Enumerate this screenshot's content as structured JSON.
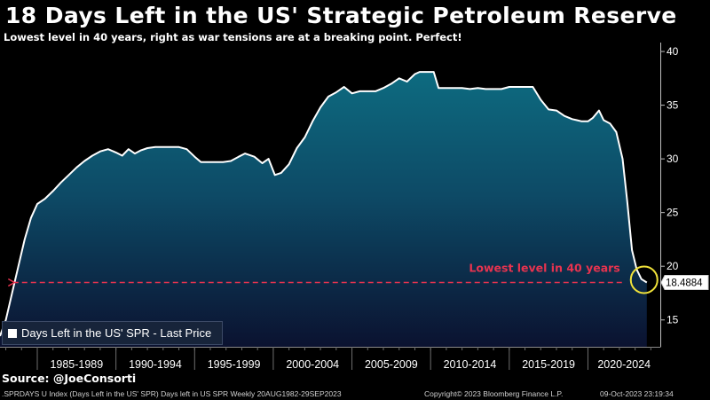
{
  "title": "18 Days Left in the US' Strategic Petroleum Reserve",
  "subtitle": "Lowest level in 40 years, right as war tensions are at a breaking point. Perfect!",
  "source": "Source: @JoeConsorti",
  "footer": {
    "index": ".SPRDAYS U Index (Days Left in the US' SPR) Days left in US SPR  Weekly 20AUG1982-29SEP2023",
    "copyright": "Copyright© 2023 Bloomberg Finance L.P.",
    "date": "09-Oct-2023 23:19:34"
  },
  "colors": {
    "background": "#000000",
    "fill_top": "#0d6b80",
    "fill_bottom": "#0b1230",
    "line": "#ffffff",
    "annotation": "#e8334f",
    "highlight_circle": "#f0e23a"
  },
  "chart_data": {
    "type": "area",
    "legend": "Days Left in the US' SPR - Last Price",
    "annotation": "Lowest level in 40 years",
    "last_value_label": "18.4884",
    "y_ticks": [
      15,
      20,
      25,
      30,
      35,
      40
    ],
    "ylim": [
      12.5,
      40.5
    ],
    "xlim": [
      1982.63,
      2024.6
    ],
    "x_tick_labels": [
      {
        "label": "1985-1989",
        "from": 1985,
        "to": 1990
      },
      {
        "label": "1990-1994",
        "from": 1990,
        "to": 1995
      },
      {
        "label": "1995-1999",
        "from": 1995,
        "to": 2000
      },
      {
        "label": "2000-2004",
        "from": 2000,
        "to": 2005
      },
      {
        "label": "2005-2009",
        "from": 2005,
        "to": 2010
      },
      {
        "label": "2010-2014",
        "from": 2010,
        "to": 2015
      },
      {
        "label": "2015-2019",
        "from": 2015,
        "to": 2020
      },
      {
        "label": "2020-2024",
        "from": 2020,
        "to": 2025
      }
    ],
    "series": [
      {
        "x": [
          1982.63,
          1983.0,
          1983.4,
          1983.8,
          1984.2,
          1984.6,
          1985.0,
          1985.5,
          1986.0,
          1986.5,
          1987.0,
          1987.5,
          1988.0,
          1988.5,
          1989.0,
          1989.5,
          1990.0,
          1990.4,
          1990.8,
          1991.2,
          1991.6,
          1992.0,
          1992.5,
          1993.0,
          1993.5,
          1994.0,
          1994.5,
          1995.0,
          1995.4,
          1995.8,
          1996.3,
          1996.8,
          1997.3,
          1997.8,
          1998.2,
          1998.8,
          1999.3,
          1999.7,
          2000.1,
          2000.5,
          2001.0,
          2001.5,
          2002.0,
          2002.5,
          2003.0,
          2003.5,
          2004.0,
          2004.5,
          2005.0,
          2005.5,
          2005.9,
          2006.2,
          2006.5,
          2007.0,
          2007.5,
          2008.0,
          2008.5,
          2009.0,
          2009.3,
          2009.6,
          2009.9,
          2010.2,
          2010.5,
          2011.0,
          2011.5,
          2012.0,
          2012.5,
          2013.0,
          2013.5,
          2014.0,
          2014.5,
          2015.0,
          2015.5,
          2016.0,
          2016.5,
          2017.0,
          2017.5,
          2018.0,
          2018.5,
          2019.0,
          2019.3,
          2019.6,
          2020.0,
          2020.3,
          2020.7,
          2021.0,
          2021.4,
          2021.8,
          2022.2,
          2022.5,
          2022.8,
          2023.1,
          2023.4,
          2023.74
        ],
        "values": [
          13.5,
          15.0,
          17.5,
          20.0,
          22.5,
          24.5,
          25.8,
          26.3,
          27.0,
          27.8,
          28.5,
          29.2,
          29.8,
          30.3,
          30.7,
          30.9,
          30.6,
          30.3,
          30.9,
          30.5,
          30.8,
          31.0,
          31.1,
          31.1,
          31.1,
          31.1,
          30.9,
          30.2,
          29.7,
          29.7,
          29.7,
          29.7,
          29.8,
          30.2,
          30.5,
          30.2,
          29.6,
          30.0,
          28.5,
          28.7,
          29.5,
          31.0,
          32.0,
          33.5,
          34.8,
          35.8,
          36.2,
          36.7,
          36.1,
          36.3,
          36.3,
          36.3,
          36.3,
          36.6,
          37.0,
          37.5,
          37.2,
          37.9,
          38.1,
          38.1,
          38.1,
          38.1,
          36.6,
          36.6,
          36.6,
          36.6,
          36.5,
          36.6,
          36.5,
          36.5,
          36.5,
          36.7,
          36.7,
          36.7,
          36.7,
          35.5,
          34.6,
          34.5,
          34.0,
          33.7,
          33.6,
          33.5,
          33.5,
          33.8,
          34.5,
          33.6,
          33.3,
          32.5,
          30.0,
          26.0,
          21.5,
          19.7,
          18.8,
          18.49
        ]
      }
    ]
  }
}
